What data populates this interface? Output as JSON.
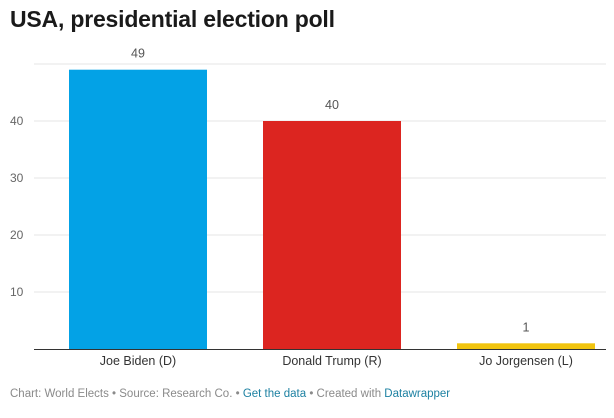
{
  "title": "USA, presidential election poll",
  "chart_data": {
    "type": "bar",
    "title": "USA, presidential election poll",
    "categories": [
      "Joe Biden (D)",
      "Donald Trump (R)",
      "Jo Jorgensen (L)"
    ],
    "values": [
      49,
      40,
      1
    ],
    "colors": [
      "#03a2e6",
      "#dc2520",
      "#f1c40f"
    ],
    "xlabel": "",
    "ylabel": "",
    "ylim": [
      0,
      50
    ],
    "yticks": [
      10,
      20,
      30,
      40
    ],
    "grid": true,
    "legend": "none"
  },
  "footer": {
    "source_text": "Chart: World Elects • Source: Research Co. • ",
    "get_data_label": "Get the data",
    "created_text": " • Created with ",
    "datawrapper_label": "Datawrapper"
  }
}
